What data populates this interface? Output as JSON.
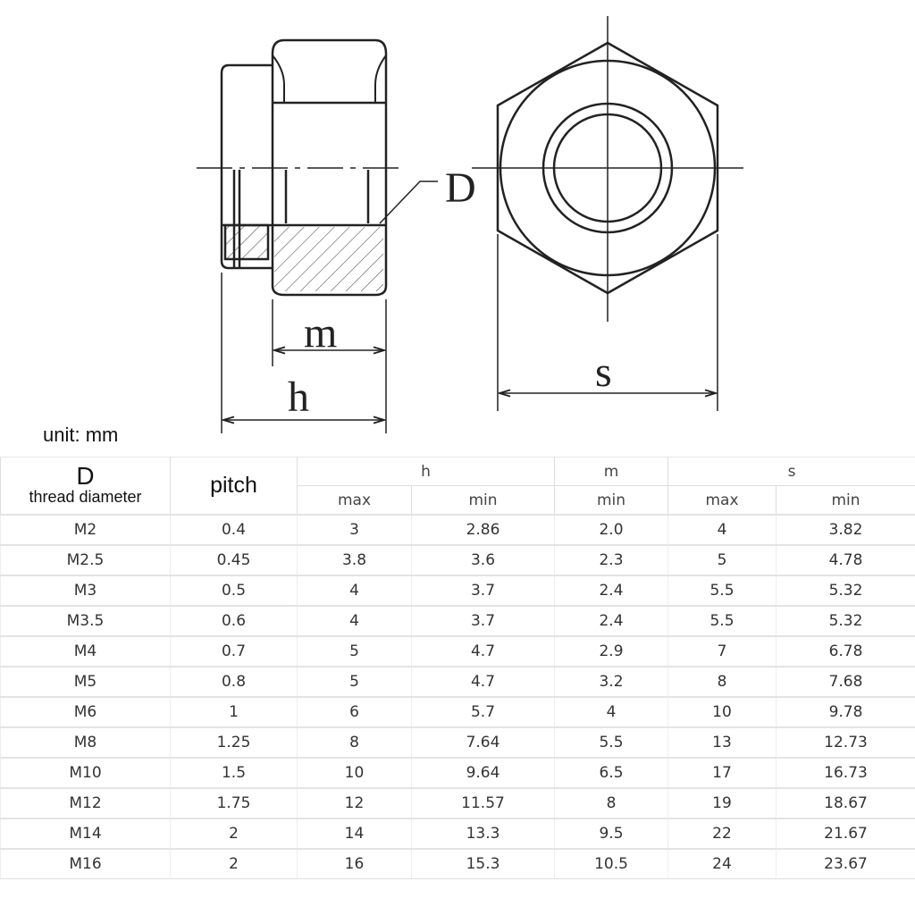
{
  "diagram": {
    "labels": {
      "D": "D",
      "m": "m",
      "h": "h",
      "s": "s"
    }
  },
  "unit_label": "unit: mm",
  "table": {
    "header": {
      "D": "D",
      "D_sub": "thread diameter",
      "pitch": "pitch",
      "h": "h",
      "m": "m",
      "s": "s",
      "h_max": "max",
      "h_min": "min",
      "m_min": "min",
      "s_max": "max",
      "s_min": "min"
    },
    "rows": [
      [
        "M2",
        "0.4",
        "3",
        "2.86",
        "2.0",
        "4",
        "3.82"
      ],
      [
        "M2.5",
        "0.45",
        "3.8",
        "3.6",
        "2.3",
        "5",
        "4.78"
      ],
      [
        "M3",
        "0.5",
        "4",
        "3.7",
        "2.4",
        "5.5",
        "5.32"
      ],
      [
        "M3.5",
        "0.6",
        "4",
        "3.7",
        "2.4",
        "5.5",
        "5.32"
      ],
      [
        "M4",
        "0.7",
        "5",
        "4.7",
        "2.9",
        "7",
        "6.78"
      ],
      [
        "M5",
        "0.8",
        "5",
        "4.7",
        "3.2",
        "8",
        "7.68"
      ],
      [
        "M6",
        "1",
        "6",
        "5.7",
        "4",
        "10",
        "9.78"
      ],
      [
        "M8",
        "1.25",
        "8",
        "7.64",
        "5.5",
        "13",
        "12.73"
      ],
      [
        "M10",
        "1.5",
        "10",
        "9.64",
        "6.5",
        "17",
        "16.73"
      ],
      [
        "M12",
        "1.75",
        "12",
        "11.57",
        "8",
        "19",
        "18.67"
      ],
      [
        "M14",
        "2",
        "14",
        "13.3",
        "9.5",
        "22",
        "21.67"
      ],
      [
        "M16",
        "2",
        "16",
        "15.3",
        "10.5",
        "24",
        "23.67"
      ]
    ]
  }
}
